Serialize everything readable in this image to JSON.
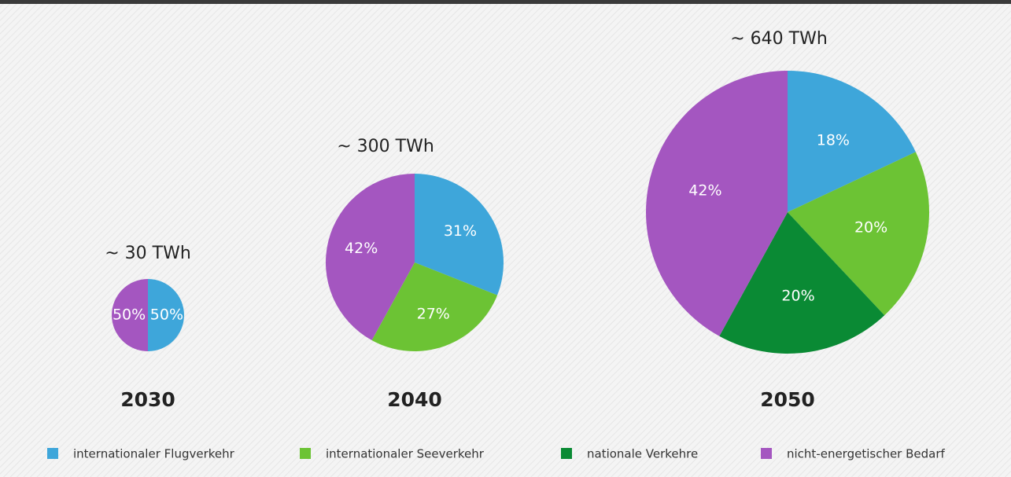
{
  "chart_data": [
    {
      "type": "pie",
      "title": "~ 30 TWh",
      "label": "2030",
      "categories": [
        "internationaler Flugverkehr",
        "nicht-energetischer Bedarf"
      ],
      "values": [
        50,
        50
      ],
      "value_labels": [
        "50%",
        "50%"
      ],
      "colors": [
        "#3ea6da",
        "#a456c0"
      ]
    },
    {
      "type": "pie",
      "title": "~ 300 TWh",
      "label": "2040",
      "categories": [
        "internationaler Flugverkehr",
        "internationaler Seeverkehr",
        "nicht-energetischer Bedarf"
      ],
      "values": [
        31,
        27,
        42
      ],
      "value_labels": [
        "31%",
        "27%",
        "42%"
      ],
      "colors": [
        "#3ea6da",
        "#6cc334",
        "#a456c0"
      ]
    },
    {
      "type": "pie",
      "title": "~ 640 TWh",
      "label": "2050",
      "categories": [
        "internationaler Flugverkehr",
        "internationaler Seeverkehr",
        "nationale Verkehre",
        "nicht-energetischer Bedarf"
      ],
      "values": [
        18,
        20,
        20,
        42
      ],
      "value_labels": [
        "18%",
        "20%",
        "20%",
        "42%"
      ],
      "colors": [
        "#3ea6da",
        "#6cc334",
        "#0a8a34",
        "#a456c0"
      ]
    }
  ],
  "legend": {
    "labels": [
      "internationaler Flugverkehr",
      "internationaler Seeverkehr",
      "nationale Verkehre",
      "nicht-energetischer Bedarf"
    ],
    "colors": [
      "#3ea6da",
      "#6cc334",
      "#0a8a34",
      "#a456c0"
    ]
  }
}
